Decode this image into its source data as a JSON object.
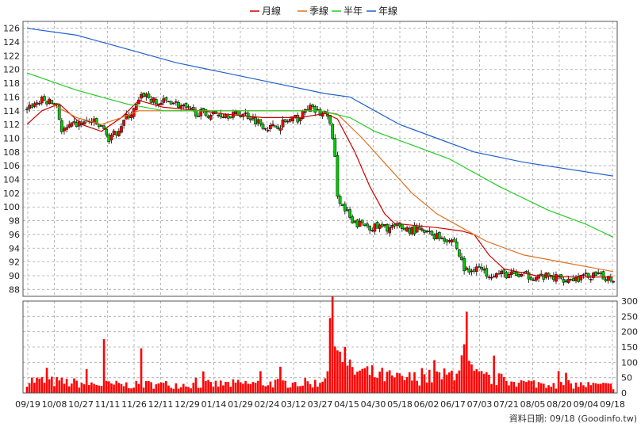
{
  "chart_data": {
    "type": "candlestick+volume",
    "legend": {
      "placement": "top-center",
      "items": [
        {
          "name": "月線",
          "color": "#cc0000"
        },
        {
          "name": "季線",
          "color": "#e07020"
        },
        {
          "name": "半年",
          "color": "#22cc22"
        },
        {
          "name": "年線",
          "color": "#2060d0"
        }
      ]
    },
    "colors": {
      "up": "#ff0000",
      "down": "#00cc00",
      "volume": "#ff0000",
      "grid": "#a8a8a8"
    },
    "price_axis": {
      "ylim": [
        87,
        127
      ],
      "ticks": [
        88,
        90,
        92,
        94,
        96,
        98,
        100,
        102,
        104,
        106,
        108,
        110,
        112,
        114,
        116,
        118,
        120,
        122,
        124,
        126
      ]
    },
    "volume_axis": {
      "ylim": [
        0,
        300
      ],
      "ticks": [
        0,
        50,
        100,
        150,
        200,
        250,
        300
      ]
    },
    "x_labels": [
      "09/19",
      "10/08",
      "10/27",
      "11/11",
      "11/26",
      "12/11",
      "12/29",
      "01/14",
      "01/29",
      "02/24",
      "03/12",
      "03/27",
      "04/15",
      "04/30",
      "05/18",
      "06/02",
      "06/17",
      "07/03",
      "07/21",
      "08/05",
      "08/20",
      "09/04",
      "09/18"
    ],
    "moving_averages": [
      {
        "name": "月線",
        "points": [
          [
            0,
            112
          ],
          [
            6,
            114
          ],
          [
            13,
            115
          ],
          [
            22,
            112
          ],
          [
            30,
            111
          ],
          [
            38,
            113
          ],
          [
            45,
            115.5
          ],
          [
            55,
            114.5
          ],
          [
            70,
            114
          ],
          [
            80,
            113.5
          ],
          [
            95,
            113
          ],
          [
            110,
            113
          ],
          [
            120,
            113.6
          ],
          [
            125,
            112.8
          ],
          [
            132,
            108
          ],
          [
            138,
            103
          ],
          [
            144,
            99
          ],
          [
            148,
            97.6
          ],
          [
            165,
            97
          ],
          [
            175,
            96.5
          ],
          [
            180,
            96
          ],
          [
            186,
            93
          ],
          [
            192,
            91
          ],
          [
            205,
            90
          ],
          [
            220,
            89.8
          ],
          [
            236,
            89.8
          ]
        ]
      },
      {
        "name": "季線",
        "points": [
          [
            10,
            115
          ],
          [
            20,
            113
          ],
          [
            30,
            112
          ],
          [
            38,
            113
          ],
          [
            45,
            114
          ],
          [
            60,
            114
          ],
          [
            80,
            114
          ],
          [
            100,
            114
          ],
          [
            118,
            114
          ],
          [
            125,
            113.5
          ],
          [
            135,
            110
          ],
          [
            145,
            106
          ],
          [
            155,
            102
          ],
          [
            165,
            99
          ],
          [
            175,
            97
          ],
          [
            185,
            95
          ],
          [
            200,
            93
          ],
          [
            215,
            92
          ],
          [
            236,
            90.6
          ]
        ]
      },
      {
        "name": "半年",
        "points": [
          [
            0,
            119.5
          ],
          [
            20,
            117
          ],
          [
            40,
            115
          ],
          [
            55,
            114
          ],
          [
            80,
            114
          ],
          [
            100,
            114
          ],
          [
            118,
            114
          ],
          [
            130,
            113
          ],
          [
            140,
            111
          ],
          [
            155,
            109
          ],
          [
            170,
            107
          ],
          [
            190,
            103
          ],
          [
            210,
            99.5
          ],
          [
            225,
            97.5
          ],
          [
            236,
            95.6
          ]
        ]
      },
      {
        "name": "年線",
        "points": [
          [
            0,
            126
          ],
          [
            20,
            125
          ],
          [
            40,
            123
          ],
          [
            60,
            121
          ],
          [
            80,
            119.5
          ],
          [
            100,
            118
          ],
          [
            120,
            116.5
          ],
          [
            130,
            116
          ],
          [
            140,
            114
          ],
          [
            150,
            112
          ],
          [
            165,
            110
          ],
          [
            180,
            108
          ],
          [
            200,
            106.5
          ],
          [
            236,
            104.5
          ]
        ]
      }
    ],
    "price_anchors": [
      [
        0,
        114.5
      ],
      [
        6,
        115.5
      ],
      [
        12,
        115
      ],
      [
        14,
        111
      ],
      [
        20,
        112
      ],
      [
        26,
        112.5
      ],
      [
        32,
        111
      ],
      [
        33,
        109.5
      ],
      [
        40,
        113
      ],
      [
        43,
        114
      ],
      [
        47,
        116.5
      ],
      [
        52,
        115
      ],
      [
        58,
        115.5
      ],
      [
        65,
        114
      ],
      [
        72,
        113.5
      ],
      [
        80,
        113.5
      ],
      [
        88,
        113.5
      ],
      [
        95,
        112
      ],
      [
        98,
        111.5
      ],
      [
        105,
        112.5
      ],
      [
        110,
        113
      ],
      [
        113,
        114.5
      ],
      [
        118,
        113.6
      ],
      [
        121,
        113.5
      ],
      [
        122,
        112
      ],
      [
        124,
        107
      ],
      [
        125,
        102
      ],
      [
        127,
        100
      ],
      [
        129,
        99
      ],
      [
        131,
        97.5
      ],
      [
        135,
        97.5
      ],
      [
        140,
        97
      ],
      [
        150,
        97
      ],
      [
        158,
        96.5
      ],
      [
        163,
        96
      ],
      [
        168,
        95.5
      ],
      [
        172,
        95
      ],
      [
        176,
        91
      ],
      [
        178,
        90.5
      ],
      [
        181,
        91.5
      ],
      [
        184,
        90.5
      ],
      [
        190,
        90.2
      ],
      [
        200,
        90
      ],
      [
        210,
        89.8
      ],
      [
        220,
        89.5
      ],
      [
        227,
        90
      ],
      [
        236,
        89.6
      ]
    ],
    "volume_anchors": [
      [
        0,
        45
      ],
      [
        20,
        35
      ],
      [
        30,
        30
      ],
      [
        31,
        170
      ],
      [
        32,
        30
      ],
      [
        45,
        28
      ],
      [
        46,
        165
      ],
      [
        47,
        30
      ],
      [
        70,
        30
      ],
      [
        100,
        35
      ],
      [
        118,
        35
      ],
      [
        121,
        100
      ],
      [
        122,
        250
      ],
      [
        123,
        310
      ],
      [
        124,
        180
      ],
      [
        127,
        150
      ],
      [
        130,
        80
      ],
      [
        150,
        50
      ],
      [
        170,
        60
      ],
      [
        176,
        130
      ],
      [
        180,
        60
      ],
      [
        200,
        35
      ],
      [
        236,
        25
      ]
    ],
    "footer": "資料日期: 09/18  (Goodinfo.tw)"
  }
}
